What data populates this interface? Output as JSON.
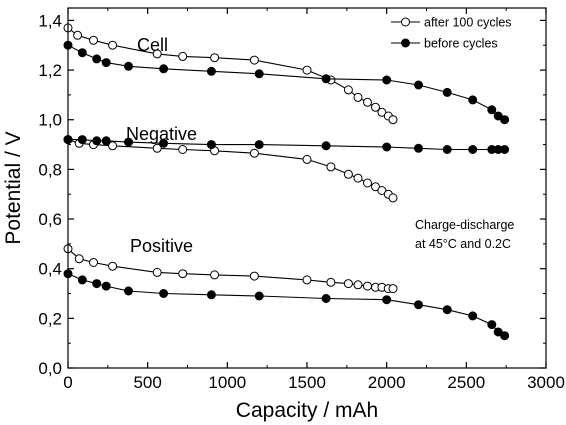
{
  "chart_data": {
    "type": "line",
    "xlabel": "Capacity / mAh",
    "ylabel": "Potential / V",
    "xlim": [
      0,
      3000
    ],
    "ylim": [
      0.0,
      1.45
    ],
    "x_ticks": [
      0,
      500,
      1000,
      1500,
      2000,
      2500,
      3000
    ],
    "x_tick_labels": [
      "0",
      "500",
      "1000",
      "1500",
      "2000",
      "2500",
      "3000"
    ],
    "y_ticks": [
      0.0,
      0.2,
      0.4,
      0.6,
      0.8,
      1.0,
      1.2,
      1.4
    ],
    "y_tick_labels": [
      "0,0",
      "0,2",
      "0,4",
      "0,6",
      "0,8",
      "1,0",
      "1,2",
      "1,4"
    ],
    "grid": false,
    "legend_position": "top-right",
    "legend": [
      {
        "label": "after 100 cycles",
        "marker": "open-circle"
      },
      {
        "label": "before cycles",
        "marker": "filled-circle"
      }
    ],
    "annotations": {
      "cell": "Cell",
      "negative": "Negative",
      "positive": "Positive",
      "condition_line1": "Charge-discharge",
      "condition_line2": "at 45°C and 0.2C"
    },
    "series": [
      {
        "name": "after 100 cycles",
        "group": "Cell",
        "marker": "open",
        "x": [
          0,
          60,
          160,
          280,
          560,
          720,
          920,
          1170,
          1500,
          1650,
          1760,
          1820,
          1880,
          1930,
          1970,
          2010,
          2040
        ],
        "y": [
          1.37,
          1.34,
          1.32,
          1.3,
          1.265,
          1.255,
          1.25,
          1.24,
          1.2,
          1.16,
          1.12,
          1.09,
          1.07,
          1.05,
          1.03,
          1.015,
          1.0
        ]
      },
      {
        "name": "before cycles",
        "group": "Cell",
        "marker": "filled",
        "x": [
          0,
          90,
          180,
          240,
          380,
          600,
          900,
          1200,
          1620,
          2000,
          2200,
          2380,
          2540,
          2660,
          2700,
          2740
        ],
        "y": [
          1.3,
          1.27,
          1.245,
          1.23,
          1.215,
          1.205,
          1.195,
          1.185,
          1.165,
          1.16,
          1.14,
          1.11,
          1.08,
          1.04,
          1.015,
          1.0
        ]
      },
      {
        "name": "after 100 cycles",
        "group": "Negative",
        "marker": "open",
        "x": [
          0,
          70,
          160,
          280,
          560,
          720,
          920,
          1170,
          1500,
          1650,
          1760,
          1820,
          1880,
          1930,
          1970,
          2010,
          2040
        ],
        "y": [
          0.92,
          0.905,
          0.9,
          0.895,
          0.885,
          0.88,
          0.875,
          0.865,
          0.84,
          0.81,
          0.78,
          0.765,
          0.745,
          0.73,
          0.715,
          0.7,
          0.685
        ]
      },
      {
        "name": "before cycles",
        "group": "Negative",
        "marker": "filled",
        "x": [
          0,
          90,
          180,
          240,
          380,
          600,
          900,
          1200,
          1620,
          2000,
          2200,
          2380,
          2540,
          2660,
          2700,
          2740
        ],
        "y": [
          0.92,
          0.92,
          0.915,
          0.915,
          0.91,
          0.905,
          0.9,
          0.9,
          0.895,
          0.89,
          0.885,
          0.88,
          0.88,
          0.88,
          0.88,
          0.88
        ]
      },
      {
        "name": "after 100 cycles",
        "group": "Positive",
        "marker": "open",
        "x": [
          0,
          70,
          160,
          280,
          560,
          720,
          920,
          1170,
          1500,
          1650,
          1760,
          1820,
          1880,
          1930,
          1970,
          2010,
          2040
        ],
        "y": [
          0.48,
          0.44,
          0.425,
          0.41,
          0.385,
          0.38,
          0.375,
          0.37,
          0.355,
          0.345,
          0.34,
          0.335,
          0.33,
          0.325,
          0.325,
          0.32,
          0.32
        ]
      },
      {
        "name": "before cycles",
        "group": "Positive",
        "marker": "filled",
        "x": [
          0,
          90,
          180,
          240,
          380,
          600,
          900,
          1200,
          1620,
          2000,
          2200,
          2380,
          2540,
          2660,
          2700,
          2740
        ],
        "y": [
          0.38,
          0.355,
          0.34,
          0.33,
          0.31,
          0.3,
          0.295,
          0.29,
          0.28,
          0.275,
          0.255,
          0.235,
          0.21,
          0.175,
          0.145,
          0.13
        ]
      }
    ]
  }
}
